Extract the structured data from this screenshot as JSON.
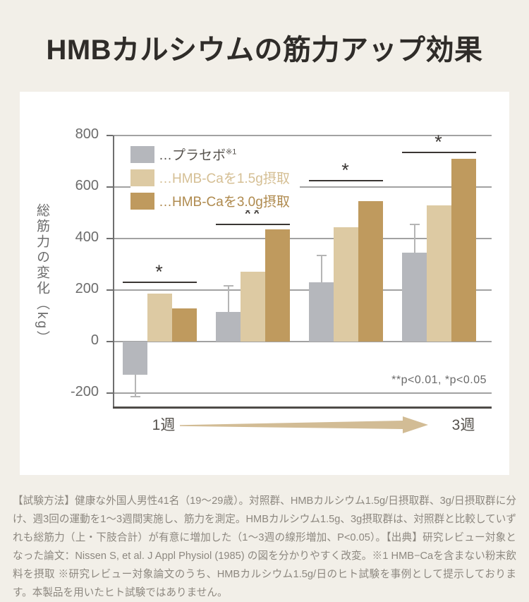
{
  "colors": {
    "page_bg": "#f2efe8",
    "card_bg": "#ffffff",
    "placebo_bar": "#b5b7bc",
    "hmb15_bar": "#ddcaa3",
    "hmb30_bar": "#bf9a5e",
    "arrow": "#d2bc95"
  },
  "chart_data": {
    "type": "bar",
    "title": "HMBカルシウムの筋力アップ効果",
    "ylabel": "総筋力の変化（kg）",
    "ylim": [
      -255,
      800
    ],
    "yticks": [
      800,
      600,
      400,
      200,
      0,
      -200
    ],
    "grid": true,
    "legend_position": "top-left-inside",
    "legend_prefix": "…",
    "x_axis": {
      "left_label": "1週",
      "right_label": "3週",
      "arrow_color": "#d2bc95"
    },
    "series": [
      {
        "name": "プラセボ",
        "sup": "※1",
        "color": "#b5b7bc",
        "text_color": "#57534e",
        "values": [
          -130,
          115,
          230,
          345
        ],
        "error_tops": [
          -215,
          215,
          335,
          455
        ]
      },
      {
        "name": "HMB-Caを1.5g摂取",
        "color": "#ddcaa3",
        "text_color": "#d5bf94",
        "values": [
          185,
          270,
          445,
          530
        ]
      },
      {
        "name": "HMB-Caを3.0g摂取",
        "color": "#bf9a5e",
        "text_color": "#af8a4e",
        "values": [
          130,
          435,
          545,
          710
        ]
      }
    ],
    "significance": [
      {
        "group_index": 0,
        "label": "*",
        "line_value": 230
      },
      {
        "group_index": 1,
        "label": "**",
        "line_value": 455
      },
      {
        "group_index": 2,
        "label": "*",
        "line_value": 625
      },
      {
        "group_index": 3,
        "label": "*",
        "line_value": 735
      }
    ],
    "annotation": "**p<0.01, *p<0.05"
  },
  "footer": {
    "text": "【試験方法】健康な外国人男性41名（19〜29歳）。対照群、HMBカルシウム1.5g/日摂取群、3g/日摂取群に分け、週3回の運動を1〜3週間実施し、筋力を測定。HMBカルシウム1.5g、3g摂取群は、対照群と比較していずれも総筋力（上・下肢合計）が有意に増加した（1〜3週の線形増加、P<0.05）。【出典】研究レビュー対象となった論文：Nissen S, et al. J Appl Physiol (1985) の図を分かりやすく改変。※1 HMB−Caを含まない粉末飲料を摂取 ※研究レビュー対象論文のうち、HMBカルシウム1.5g/日のヒト試験を事例として提示しております。本製品を用いたヒト試験ではありません。"
  }
}
